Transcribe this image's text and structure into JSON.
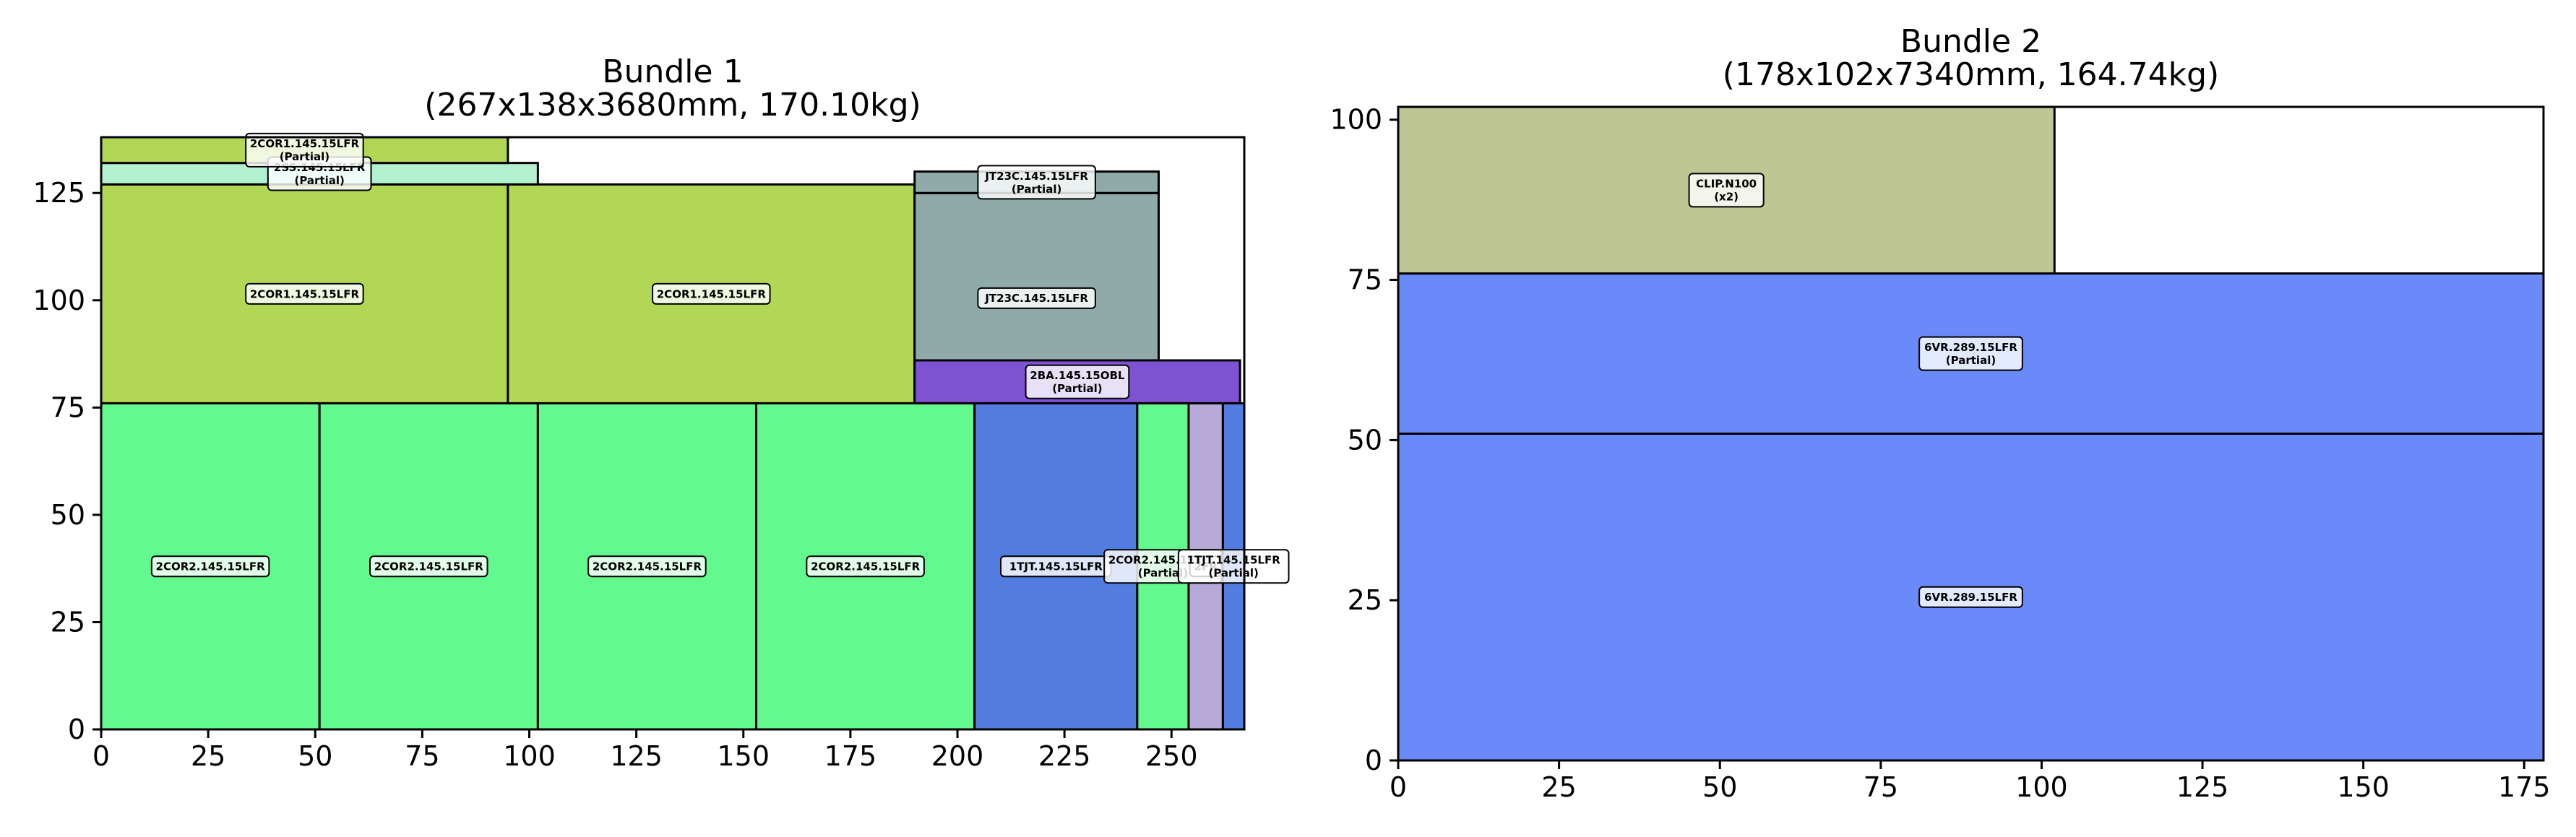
{
  "chart_data": [
    {
      "type": "bar",
      "title_lines": [
        "Bundle 1",
        "(267x138x3680mm, 170.10kg)"
      ],
      "xlim": [
        0,
        267
      ],
      "ylim": [
        0,
        138
      ],
      "xticks": [
        0,
        25,
        50,
        75,
        100,
        125,
        150,
        175,
        200,
        225,
        250
      ],
      "yticks": [
        0,
        25,
        50,
        75,
        100,
        125
      ],
      "grid": false,
      "items": [
        {
          "name": "2COR2.145.15LFR",
          "x": 0,
          "y": 0,
          "w": 51,
          "h": 76,
          "color": "#62f98e"
        },
        {
          "name": "2COR2.145.15LFR",
          "x": 51,
          "y": 0,
          "w": 51,
          "h": 76,
          "color": "#62f98e"
        },
        {
          "name": "2COR2.145.15LFR",
          "x": 102,
          "y": 0,
          "w": 51,
          "h": 76,
          "color": "#62f98e"
        },
        {
          "name": "2COR2.145.15LFR",
          "x": 153,
          "y": 0,
          "w": 51,
          "h": 76,
          "color": "#62f98e"
        },
        {
          "name": "1TJT.145.15LFR",
          "x": 204,
          "y": 0,
          "w": 38,
          "h": 76,
          "color": "#527ce0"
        },
        {
          "name": "2COR2.145.15LFR",
          "sub": "(Partial)",
          "x": 242,
          "y": 0,
          "w": 12,
          "h": 76,
          "color": "#62f98e"
        },
        {
          "name": "2FR",
          "sub": "",
          "x": 254,
          "y": 0,
          "w": 8,
          "h": 76,
          "color": "#b7a9d8"
        },
        {
          "name": "1TJT.145.15LFR",
          "sub": "(Partial)",
          "x": 262,
          "y": 0,
          "w": 5,
          "h": 76,
          "color": "#527ce0"
        },
        {
          "name": "2COR1.145.15LFR",
          "x": 0,
          "y": 76,
          "w": 95,
          "h": 51,
          "color": "#b2d754"
        },
        {
          "name": "2COR1.145.15LFR",
          "x": 95,
          "y": 76,
          "w": 95,
          "h": 51,
          "color": "#b2d754"
        },
        {
          "name": "JT23C.145.15LFR",
          "x": 190,
          "y": 76,
          "w": 57,
          "h": 49,
          "color": "#90aaaa"
        },
        {
          "name": "2BA.145.15OBL",
          "sub": "(Partial)",
          "x": 190,
          "y": 76,
          "w": 76,
          "h": 10,
          "color": "#7e52d2"
        },
        {
          "name": "JT23C.145.15LFR",
          "sub": "(Partial)",
          "x": 190,
          "y": 125,
          "w": 57,
          "h": 5,
          "color": "#90aaaa"
        },
        {
          "name": "2SS.145.15LFR",
          "sub": "(Partial)",
          "x": 0,
          "y": 127,
          "w": 102,
          "h": 5,
          "color": "#b3f0d0"
        },
        {
          "name": "2COR1.145.15LFR",
          "sub": "(Partial)",
          "x": 0,
          "y": 132,
          "w": 95,
          "h": 6,
          "color": "#b2d754"
        }
      ]
    },
    {
      "type": "bar",
      "title_lines": [
        "Bundle 2",
        "(178x102x7340mm, 164.74kg)"
      ],
      "xlim": [
        0,
        178
      ],
      "ylim": [
        0,
        102
      ],
      "xticks": [
        0,
        25,
        50,
        75,
        100,
        125,
        150,
        175
      ],
      "yticks": [
        0,
        25,
        50,
        75,
        100
      ],
      "grid": false,
      "items": [
        {
          "name": "6VR.289.15LFR",
          "x": 0,
          "y": 0,
          "w": 178,
          "h": 51,
          "color": "#6a8afa"
        },
        {
          "name": "6VR.289.15LFR",
          "sub": "(Partial)",
          "x": 0,
          "y": 51,
          "w": 178,
          "h": 25,
          "color": "#6a8afa"
        },
        {
          "name": "CLIP.N100",
          "sub": "(x2)",
          "x": 0,
          "y": 76,
          "w": 102,
          "h": 26,
          "color": "#bec694"
        }
      ]
    }
  ]
}
